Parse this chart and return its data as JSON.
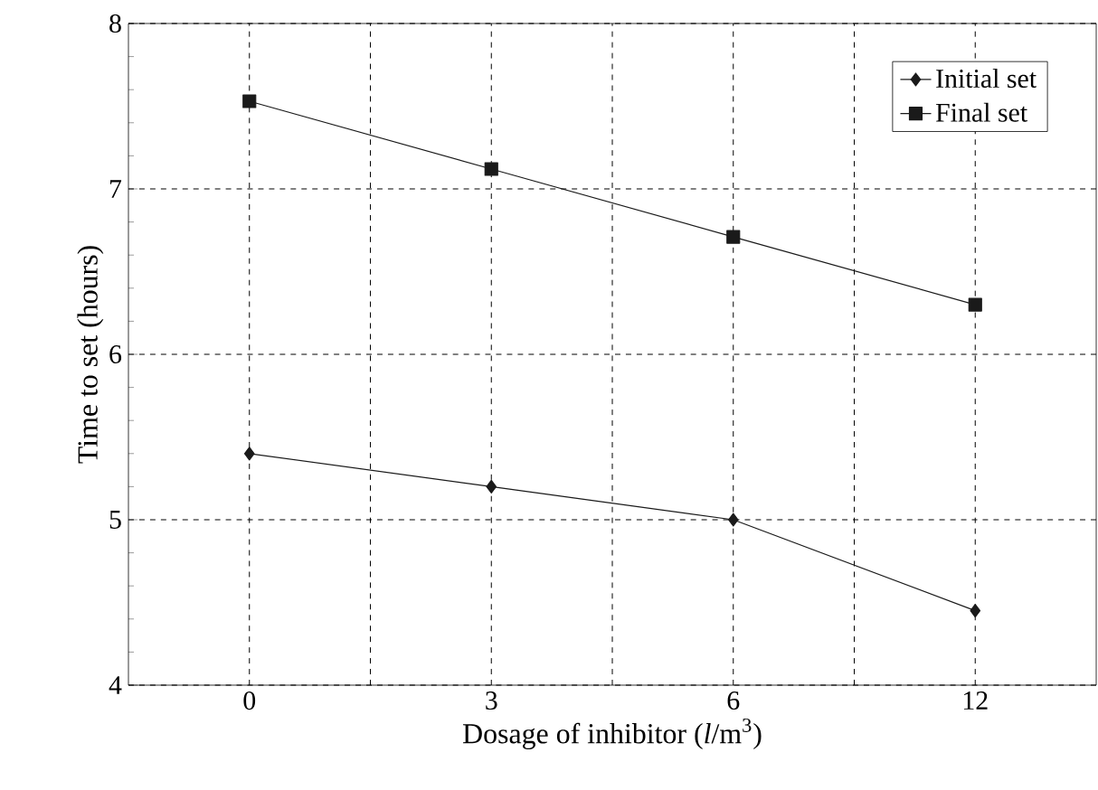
{
  "chart_data": {
    "type": "line",
    "xlabel": "Dosage of inhibitor (*l*/m$^{3}$)",
    "ylabel": "Time to set (hours)",
    "categories": [
      "0",
      "3",
      "6",
      "12"
    ],
    "series": [
      {
        "name": "Initial set",
        "color": "#1a1a1a",
        "marker": "diamond",
        "values": [
          5.4,
          5.2,
          5.0,
          4.45
        ]
      },
      {
        "name": "Final set",
        "color": "#1a1a1a",
        "marker": "square",
        "values": [
          7.53,
          7.12,
          6.71,
          6.3
        ]
      }
    ],
    "ylim": [
      4,
      8
    ],
    "yticks": [
      4,
      5,
      6,
      7,
      8
    ],
    "grid": true,
    "legend": "top right",
    "line_style": "solid"
  }
}
